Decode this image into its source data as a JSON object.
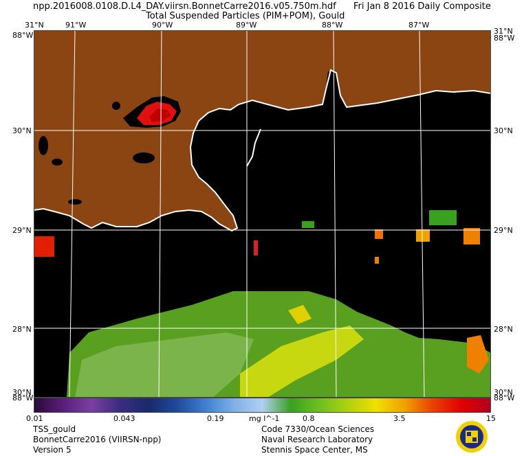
{
  "header": {
    "filename": "npp.2016008.0108.D.L4_DAY.viirsn.BonnetCarre2016.v05.750m.hdf",
    "date": "Fri Jan  8 2016 Daily Composite",
    "product": "Total Suspended Particles (PIM+POM), Gould"
  },
  "axes": {
    "lon_labels": [
      "91°W",
      "90°W",
      "89°W",
      "88°W",
      "87°W"
    ],
    "lat_labels": [
      "30°N",
      "29°N",
      "28°N"
    ],
    "corner_top_lat": "31°N",
    "corner_left_lon_top": "88°W",
    "corner_bottom_lat": "30°N",
    "corner_left_lon_bottom": "88°W"
  },
  "colorbar": {
    "ticks": [
      "0.01",
      "0.043",
      "0.19",
      "mg l^-1",
      "0.8",
      "3.5",
      "15"
    ],
    "colors": [
      "#2a0a3a",
      "#5a1f7a",
      "#7b3fa0",
      "#3a2c80",
      "#1a2a6a",
      "#1e4a9a",
      "#3f7fcf",
      "#7fb0e6",
      "#aed0f0",
      "#3aa020",
      "#6cc020",
      "#b0d010",
      "#f0e000",
      "#f0a000",
      "#e84000",
      "#e00000",
      "#b00020"
    ]
  },
  "footer": {
    "left": [
      "TSS_gould",
      "BonnetCarre2016 (VIIRSN-npp)",
      "Version 5"
    ],
    "right": [
      "Code 7330/Ocean Sciences",
      "Naval Research Laboratory",
      "Stennis Space Center, MS"
    ]
  },
  "colors": {
    "land": "#8b4513",
    "ocean": "#000000",
    "coast": "#ffffff",
    "grid": "#ffffff"
  }
}
